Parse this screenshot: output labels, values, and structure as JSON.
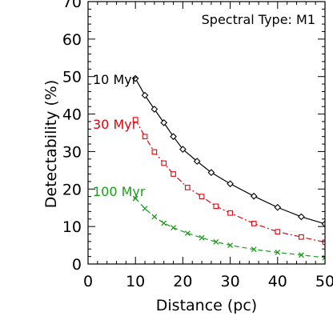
{
  "chart_data": {
    "type": "line",
    "annotation": "Spectral Type: M1",
    "xlabel": "Distance (pc)",
    "ylabel": "Detectability (%)",
    "xlim": [
      0,
      50
    ],
    "ylim": [
      0,
      70
    ],
    "x_ticks": [
      0,
      10,
      20,
      30,
      40,
      50
    ],
    "y_ticks": [
      0,
      10,
      20,
      30,
      40,
      50,
      60,
      70
    ],
    "x_tick_labels": [
      "0",
      "10",
      "20",
      "30",
      "40",
      "50"
    ],
    "y_tick_labels": [
      "0",
      "10",
      "20",
      "30",
      "40",
      "50",
      "60",
      "70"
    ],
    "grid": false,
    "series": [
      {
        "name": "10 Myr",
        "color": "#000000",
        "marker": "diamond",
        "line_style": "solid",
        "x": [
          10,
          12,
          14,
          16,
          18,
          20,
          23,
          26,
          30,
          35,
          40,
          45,
          50
        ],
        "y": [
          49.5,
          45,
          41.3,
          37.7,
          34.0,
          30.6,
          27.4,
          24.4,
          21.4,
          18.1,
          15.1,
          12.6,
          10.7
        ]
      },
      {
        "name": "30 Myr",
        "color": "#e8000b",
        "marker": "square",
        "line_style": "dash-dot",
        "x": [
          10,
          12,
          14,
          16,
          18,
          21,
          24,
          27,
          30,
          35,
          40,
          45,
          50
        ],
        "y": [
          38.5,
          34.0,
          29.9,
          26.9,
          24.0,
          20.4,
          18.0,
          15.4,
          13.6,
          10.8,
          8.6,
          7.2,
          5.8
        ]
      },
      {
        "name": "100 Myr",
        "color": "#1a9e1a",
        "marker": "x",
        "line_style": "dashed",
        "x": [
          10,
          12,
          14,
          16,
          18,
          21,
          24,
          27,
          30,
          35,
          40,
          45,
          50
        ],
        "y": [
          17.5,
          14.8,
          12.6,
          10.9,
          9.7,
          8.2,
          7.0,
          5.9,
          5.0,
          3.9,
          3.1,
          2.4,
          1.7
        ]
      }
    ]
  }
}
